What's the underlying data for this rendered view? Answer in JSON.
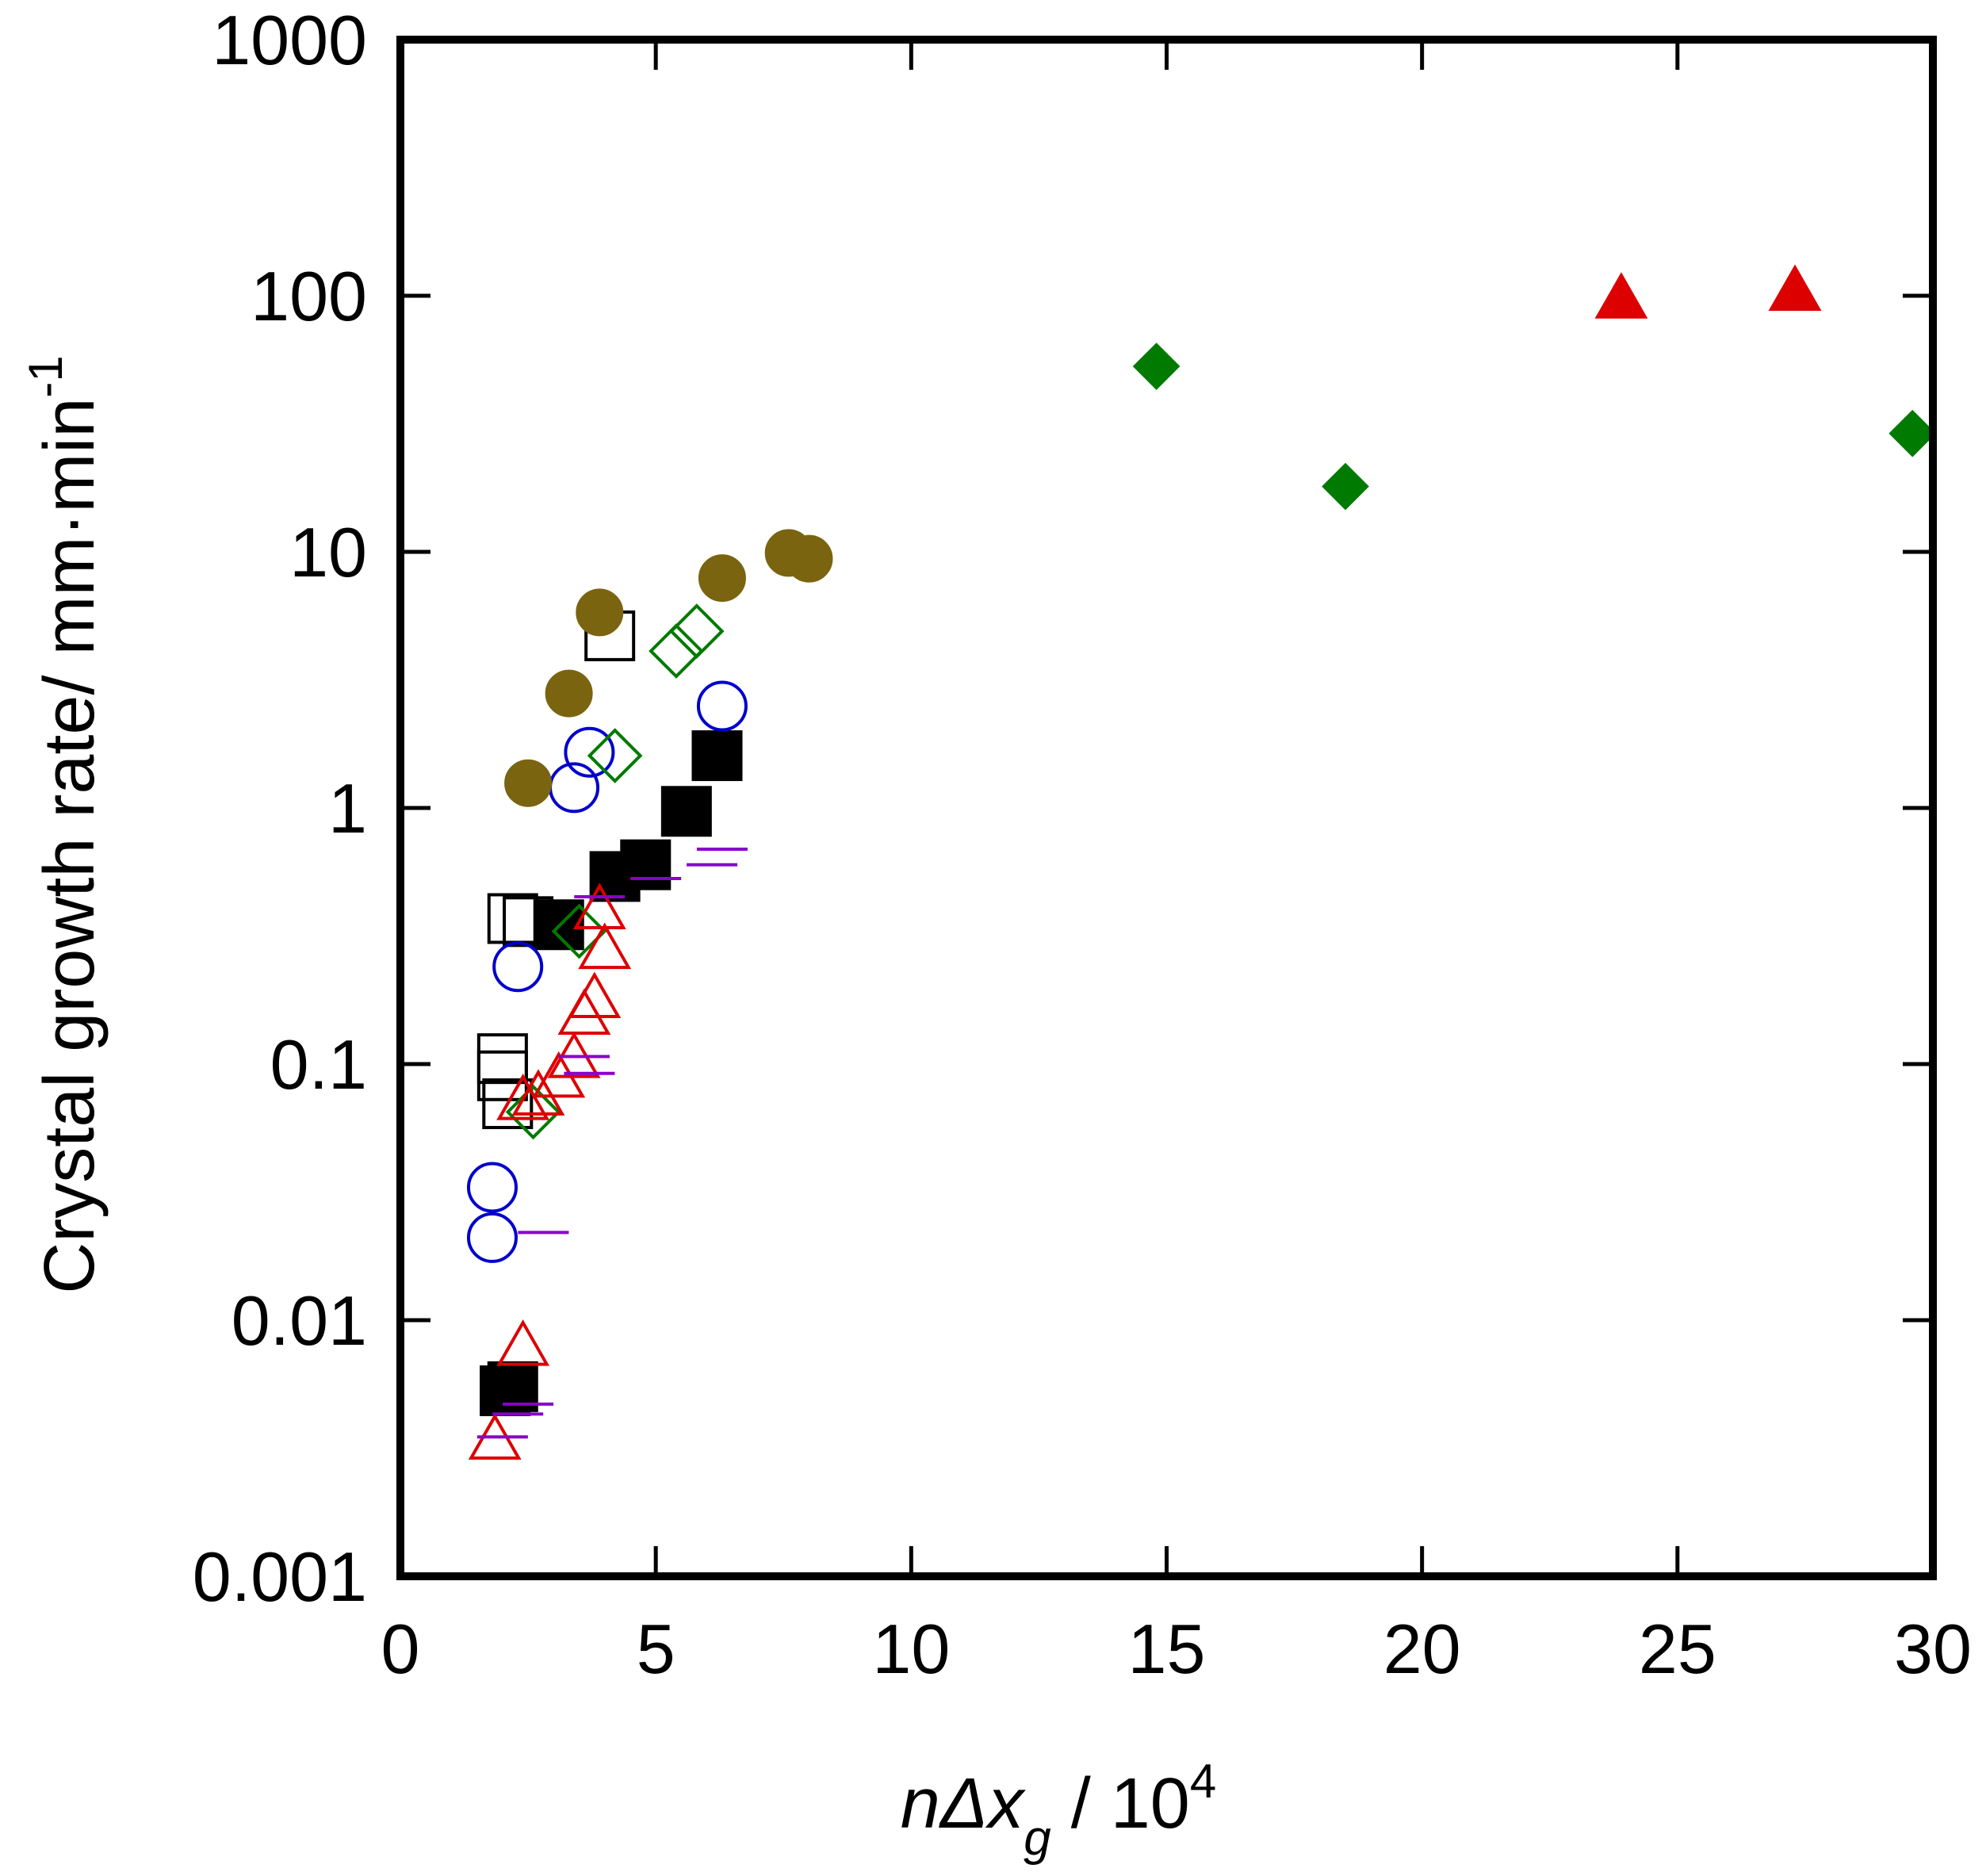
{
  "chart_data": {
    "type": "scatter",
    "title": "",
    "xlabel": {
      "main": "nΔx",
      "sub": "g",
      "rest": " / 10",
      "sup": "4"
    },
    "ylabel": {
      "main": "Crystal growth rate/ mm·min",
      "sup": "-1"
    },
    "xlim": [
      0,
      30
    ],
    "ylim": [
      0.001,
      1000
    ],
    "yscale": "log",
    "x_ticks": [
      0,
      5,
      10,
      15,
      20,
      25,
      30
    ],
    "x_tick_labels": [
      "0",
      "5",
      "10",
      "15",
      "20",
      "25",
      "30"
    ],
    "y_ticks": [
      0.001,
      0.01,
      0.1,
      1,
      10,
      100,
      1000
    ],
    "y_tick_labels": [
      "0.001",
      "0.01",
      "0.1",
      "1",
      "10",
      "100",
      "1000"
    ],
    "grid": false,
    "legend": "none",
    "series": [
      {
        "name": "open-square",
        "marker": "square",
        "filled": false,
        "color": "#000000",
        "points": [
          [
            4.1,
            4.7
          ],
          [
            2.5,
            0.36
          ],
          [
            2.2,
            0.37
          ],
          [
            2.0,
            0.09
          ],
          [
            2.0,
            0.105
          ],
          [
            2.1,
            0.07
          ]
        ]
      },
      {
        "name": "filled-square",
        "marker": "square",
        "filled": true,
        "color": "#000000",
        "points": [
          [
            6.2,
            1.6
          ],
          [
            5.6,
            0.97
          ],
          [
            4.8,
            0.6
          ],
          [
            4.2,
            0.54
          ],
          [
            3.1,
            0.35
          ],
          [
            2.2,
            0.0055
          ],
          [
            2.05,
            0.0053
          ]
        ]
      },
      {
        "name": "open-circle",
        "marker": "circle",
        "filled": false,
        "color": "#0000cc",
        "points": [
          [
            6.3,
            2.5
          ],
          [
            3.7,
            1.65
          ],
          [
            3.4,
            1.2
          ],
          [
            2.3,
            0.24
          ],
          [
            1.8,
            0.033
          ],
          [
            1.8,
            0.021
          ]
        ]
      },
      {
        "name": "filled-circle",
        "marker": "circle",
        "filled": true,
        "color": "#7a6410",
        "points": [
          [
            3.9,
            5.8
          ],
          [
            3.3,
            2.8
          ],
          [
            2.5,
            1.25
          ],
          [
            6.3,
            7.9
          ],
          [
            7.6,
            9.9
          ],
          [
            8.0,
            9.4
          ]
        ]
      },
      {
        "name": "open-diamond",
        "marker": "diamond",
        "filled": false,
        "color": "#007a00",
        "points": [
          [
            5.8,
            4.9
          ],
          [
            5.4,
            4.1
          ],
          [
            4.2,
            1.6
          ],
          [
            3.5,
            0.33
          ],
          [
            2.6,
            0.065
          ]
        ]
      },
      {
        "name": "filled-diamond",
        "marker": "diamond",
        "filled": true,
        "color": "#007a00",
        "points": [
          [
            14.8,
            53
          ],
          [
            18.5,
            18
          ],
          [
            29.6,
            29
          ]
        ]
      },
      {
        "name": "open-triangle",
        "marker": "triangle",
        "filled": false,
        "color": "#dd0000",
        "points": [
          [
            3.9,
            0.4
          ],
          [
            4.0,
            0.28
          ],
          [
            3.8,
            0.18
          ],
          [
            3.6,
            0.155
          ],
          [
            3.4,
            0.105
          ],
          [
            3.1,
            0.088
          ],
          [
            2.7,
            0.075
          ],
          [
            2.4,
            0.072
          ],
          [
            2.4,
            0.0079
          ],
          [
            1.85,
            0.0034
          ]
        ]
      },
      {
        "name": "filled-triangle",
        "marker": "triangle",
        "filled": true,
        "color": "#dd0000",
        "points": [
          [
            23.9,
            97
          ],
          [
            27.3,
            104
          ]
        ]
      },
      {
        "name": "dash",
        "marker": "hline",
        "filled": false,
        "color": "#8800cc",
        "points": [
          [
            6.3,
            0.69
          ],
          [
            6.1,
            0.6
          ],
          [
            5.0,
            0.53
          ],
          [
            3.9,
            0.45
          ],
          [
            3.6,
            0.107
          ],
          [
            3.7,
            0.092
          ],
          [
            2.8,
            0.022
          ],
          [
            2.5,
            0.0047
          ],
          [
            2.3,
            0.0043
          ],
          [
            2.0,
            0.0035
          ]
        ]
      }
    ]
  }
}
